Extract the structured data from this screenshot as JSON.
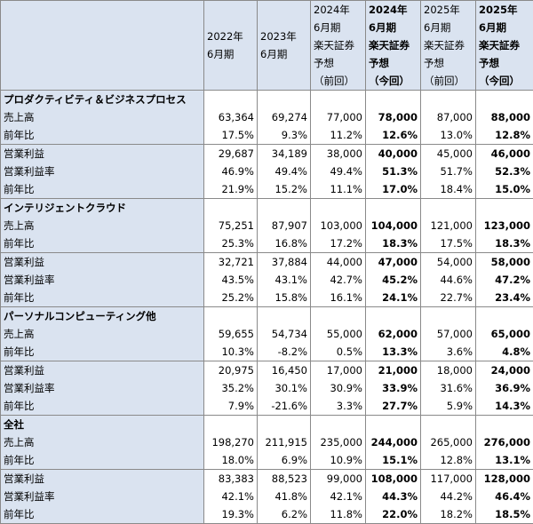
{
  "header": {
    "columns": [
      {
        "lines": [
          "2022年",
          "6月期"
        ],
        "bold": false
      },
      {
        "lines": [
          "2023年",
          "6月期"
        ],
        "bold": false
      },
      {
        "lines": [
          "2024年",
          "6月期",
          "楽天証券",
          "予想",
          "（前回）"
        ],
        "bold": false
      },
      {
        "lines": [
          "2024年",
          "6月期",
          "楽天証券",
          "予想",
          "（今回）"
        ],
        "bold": true
      },
      {
        "lines": [
          "2025年",
          "6月期",
          "楽天証券",
          "予想",
          "（前回）"
        ],
        "bold": false
      },
      {
        "lines": [
          "2025年",
          "6月期",
          "楽天証券",
          "予想",
          "（今回）"
        ],
        "bold": true
      }
    ]
  },
  "sections": [
    {
      "title": "プロダクティビティ＆ビジネスプロセス",
      "rows": [
        {
          "label": "売上高",
          "values": [
            "63,364",
            "69,274",
            "77,000",
            "78,000",
            "87,000",
            "88,000"
          ],
          "topBorder": false
        },
        {
          "label": "前年比",
          "values": [
            "17.5%",
            "9.3%",
            "11.2%",
            "12.6%",
            "13.0%",
            "12.8%"
          ],
          "topBorder": false
        },
        {
          "label": "営業利益",
          "values": [
            "29,687",
            "34,189",
            "38,000",
            "40,000",
            "45,000",
            "46,000"
          ],
          "topBorder": true
        },
        {
          "label": "営業利益率",
          "values": [
            "46.9%",
            "49.4%",
            "49.4%",
            "51.3%",
            "51.7%",
            "52.3%"
          ],
          "topBorder": false
        },
        {
          "label": "前年比",
          "values": [
            "21.9%",
            "15.2%",
            "11.1%",
            "17.0%",
            "18.4%",
            "15.0%"
          ],
          "topBorder": false
        }
      ]
    },
    {
      "title": "インテリジェントクラウド",
      "rows": [
        {
          "label": "売上高",
          "values": [
            "75,251",
            "87,907",
            "103,000",
            "104,000",
            "121,000",
            "123,000"
          ],
          "topBorder": false
        },
        {
          "label": "前年比",
          "values": [
            "25.3%",
            "16.8%",
            "17.2%",
            "18.3%",
            "17.5%",
            "18.3%"
          ],
          "topBorder": false
        },
        {
          "label": "営業利益",
          "values": [
            "32,721",
            "37,884",
            "44,000",
            "47,000",
            "54,000",
            "58,000"
          ],
          "topBorder": true
        },
        {
          "label": "営業利益率",
          "values": [
            "43.5%",
            "43.1%",
            "42.7%",
            "45.2%",
            "44.6%",
            "47.2%"
          ],
          "topBorder": false
        },
        {
          "label": "前年比",
          "values": [
            "25.2%",
            "15.8%",
            "16.1%",
            "24.1%",
            "22.7%",
            "23.4%"
          ],
          "topBorder": false
        }
      ]
    },
    {
      "title": "パーソナルコンピューティング他",
      "rows": [
        {
          "label": "売上高",
          "values": [
            "59,655",
            "54,734",
            "55,000",
            "62,000",
            "57,000",
            "65,000"
          ],
          "topBorder": false
        },
        {
          "label": "前年比",
          "values": [
            "10.3%",
            "-8.2%",
            "0.5%",
            "13.3%",
            "3.6%",
            "4.8%"
          ],
          "topBorder": false
        },
        {
          "label": "営業利益",
          "values": [
            "20,975",
            "16,450",
            "17,000",
            "21,000",
            "18,000",
            "24,000"
          ],
          "topBorder": true
        },
        {
          "label": "営業利益率",
          "values": [
            "35.2%",
            "30.1%",
            "30.9%",
            "33.9%",
            "31.6%",
            "36.9%"
          ],
          "topBorder": false
        },
        {
          "label": "前年比",
          "values": [
            "7.9%",
            "-21.6%",
            "3.3%",
            "27.7%",
            "5.9%",
            "14.3%"
          ],
          "topBorder": false
        }
      ]
    },
    {
      "title": "全社",
      "rows": [
        {
          "label": "売上高",
          "values": [
            "198,270",
            "211,915",
            "235,000",
            "244,000",
            "265,000",
            "276,000"
          ],
          "topBorder": false
        },
        {
          "label": "前年比",
          "values": [
            "18.0%",
            "6.9%",
            "10.9%",
            "15.1%",
            "12.8%",
            "13.1%"
          ],
          "topBorder": false
        },
        {
          "label": "営業利益",
          "values": [
            "83,383",
            "88,523",
            "99,000",
            "108,000",
            "117,000",
            "128,000"
          ],
          "topBorder": true
        },
        {
          "label": "営業利益率",
          "values": [
            "42.1%",
            "41.8%",
            "42.1%",
            "44.3%",
            "44.2%",
            "46.4%"
          ],
          "topBorder": false
        },
        {
          "label": "前年比",
          "values": [
            "19.3%",
            "6.2%",
            "11.8%",
            "22.0%",
            "18.2%",
            "18.5%"
          ],
          "topBorder": false
        }
      ]
    }
  ]
}
